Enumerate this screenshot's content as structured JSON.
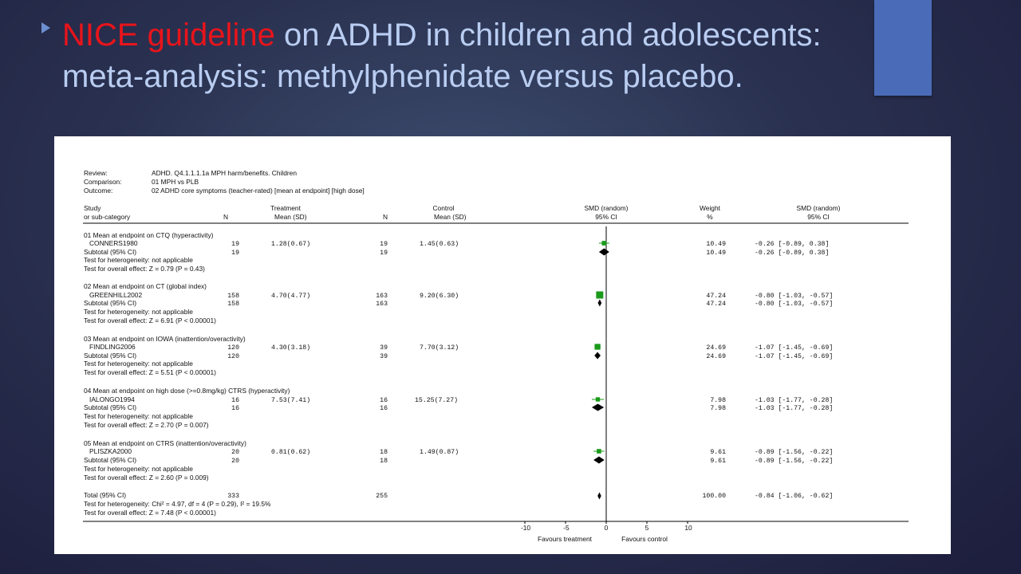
{
  "slide": {
    "title_highlight": "NICE guideline",
    "title_rest": " on ADHD in children and adolescents: meta-analysis: methylphenidate versus placebo.",
    "accent_color": "#e8141b",
    "text_color": "#b9cdf2"
  },
  "forest_plot": {
    "meta": [
      {
        "key": "Review:",
        "value": "ADHD. Q4.1.1.1.1a MPH harm/benefits. Children"
      },
      {
        "key": "Comparison:",
        "value": "01 MPH vs PLB"
      },
      {
        "key": "Outcome:",
        "value": "02 ADHD core symptoms (teacher-rated) [mean at endpoint] [high dose]"
      }
    ],
    "headers": {
      "study_1": "Study",
      "study_2": "or sub-category",
      "n": "N",
      "treatment": "Treatment",
      "control": "Control",
      "mean_sd": "Mean (SD)",
      "smd_random": "SMD (random)",
      "ci95": "95% CI",
      "weight": "Weight",
      "percent": "%"
    },
    "groups": [
      {
        "title": "01 Mean at endpoint on CTQ (hyperactivity)",
        "study": {
          "name": "CONNERS1980",
          "n_t": "19",
          "mean_t": "1.28(0.67)",
          "n_c": "19",
          "mean_c": "1.45(0.63)",
          "weight": "10.49",
          "ci": "-0.26 [-0.89, 0.38]",
          "smd": -0.26,
          "lo": -0.89,
          "hi": 0.38
        },
        "subtotal": {
          "label": "Subtotal (95% CI)",
          "n_t": "19",
          "n_c": "19",
          "weight": "10.49",
          "ci": "-0.26 [-0.89, 0.38]",
          "smd": -0.26,
          "lo": -0.89,
          "hi": 0.38
        },
        "heterogeneity": "Test for heterogeneity: not applicable",
        "overall": "Test for overall effect: Z = 0.79 (P = 0.43)"
      },
      {
        "title": "02 Mean at endpoint on CT (global index)",
        "study": {
          "name": "GREENHILL2002",
          "n_t": "158",
          "mean_t": "4.70(4.77)",
          "n_c": "163",
          "mean_c": "9.20(6.30)",
          "weight": "47.24",
          "ci": "-0.80 [-1.03, -0.57]",
          "smd": -0.8,
          "lo": -1.03,
          "hi": -0.57
        },
        "subtotal": {
          "label": "Subtotal (95% CI)",
          "n_t": "158",
          "n_c": "163",
          "weight": "47.24",
          "ci": "-0.80 [-1.03, -0.57]",
          "smd": -0.8,
          "lo": -1.03,
          "hi": -0.57
        },
        "heterogeneity": "Test for heterogeneity: not applicable",
        "overall": "Test for overall effect: Z = 6.91 (P < 0.00001)"
      },
      {
        "title": "03 Mean at endpoint on IOWA (inattention/overactivity)",
        "study": {
          "name": "FINDLING2006",
          "n_t": "120",
          "mean_t": "4.30(3.18)",
          "n_c": "39",
          "mean_c": "7.70(3.12)",
          "weight": "24.69",
          "ci": "-1.07 [-1.45, -0.69]",
          "smd": -1.07,
          "lo": -1.45,
          "hi": -0.69
        },
        "subtotal": {
          "label": "Subtotal (95% CI)",
          "n_t": "120",
          "n_c": "39",
          "weight": "24.69",
          "ci": "-1.07 [-1.45, -0.69]",
          "smd": -1.07,
          "lo": -1.45,
          "hi": -0.69
        },
        "heterogeneity": "Test for heterogeneity: not applicable",
        "overall": "Test for overall effect: Z = 5.51 (P < 0.00001)"
      },
      {
        "title": "04 Mean at endpoint on high dose (>=0.8mg/kg) CTRS (hyperactivity)",
        "study": {
          "name": "IALONGO1994",
          "n_t": "16",
          "mean_t": "7.53(7.41)",
          "n_c": "16",
          "mean_c": "15.25(7.27)",
          "weight": "7.98",
          "ci": "-1.03 [-1.77, -0.28]",
          "smd": -1.03,
          "lo": -1.77,
          "hi": -0.28
        },
        "subtotal": {
          "label": "Subtotal (95% CI)",
          "n_t": "16",
          "n_c": "16",
          "weight": "7.98",
          "ci": "-1.03 [-1.77, -0.28]",
          "smd": -1.03,
          "lo": -1.77,
          "hi": -0.28
        },
        "heterogeneity": "Test for heterogeneity: not applicable",
        "overall": "Test for overall effect: Z = 2.70 (P = 0.007)"
      },
      {
        "title": "05 Mean at endpoint on CTRS (inattention/overactivity)",
        "study": {
          "name": "PLISZKA2000",
          "n_t": "20",
          "mean_t": "0.81(0.62)",
          "n_c": "18",
          "mean_c": "1.49(0.87)",
          "weight": "9.61",
          "ci": "-0.89 [-1.56, -0.22]",
          "smd": -0.89,
          "lo": -1.56,
          "hi": -0.22
        },
        "subtotal": {
          "label": "Subtotal (95% CI)",
          "n_t": "20",
          "n_c": "18",
          "weight": "9.61",
          "ci": "-0.89 [-1.56, -0.22]",
          "smd": -0.89,
          "lo": -1.56,
          "hi": -0.22
        },
        "heterogeneity": "Test for heterogeneity: not applicable",
        "overall": "Test for overall effect: Z = 2.60 (P = 0.009)"
      }
    ],
    "total": {
      "label": "Total (95% CI)",
      "n_t": "333",
      "n_c": "255",
      "weight": "100.00",
      "ci": "-0.84 [-1.06, -0.62]",
      "smd": -0.84,
      "lo": -1.06,
      "hi": -0.62,
      "heterogeneity": "Test for heterogeneity: Chi² = 4.97, df = 4 (P = 0.29), I² = 19.5%",
      "overall": "Test for overall effect: Z = 7.48 (P < 0.00001)"
    },
    "axis": {
      "ticks": [
        "-10",
        "-5",
        "0",
        "5",
        "10"
      ],
      "favours_left": "Favours treatment",
      "favours_right": "Favours control"
    },
    "colors": {
      "marker": "#1a9a1a",
      "diamond": "#000000"
    }
  },
  "chart_data": {
    "type": "forest",
    "measure": "SMD (random)",
    "xlim": [
      -10,
      10
    ],
    "studies": [
      {
        "name": "CONNERS1980",
        "smd": -0.26,
        "ci": [
          -0.89,
          0.38
        ],
        "weight": 10.49
      },
      {
        "name": "GREENHILL2002",
        "smd": -0.8,
        "ci": [
          -1.03,
          -0.57
        ],
        "weight": 47.24
      },
      {
        "name": "FINDLING2006",
        "smd": -1.07,
        "ci": [
          -1.45,
          -0.69
        ],
        "weight": 24.69
      },
      {
        "name": "IALONGO1994",
        "smd": -1.03,
        "ci": [
          -1.77,
          -0.28
        ],
        "weight": 7.98
      },
      {
        "name": "PLISZKA2000",
        "smd": -0.89,
        "ci": [
          -1.56,
          -0.22
        ],
        "weight": 9.61
      }
    ],
    "total": {
      "smd": -0.84,
      "ci": [
        -1.06,
        -0.62
      ],
      "weight": 100.0
    }
  }
}
